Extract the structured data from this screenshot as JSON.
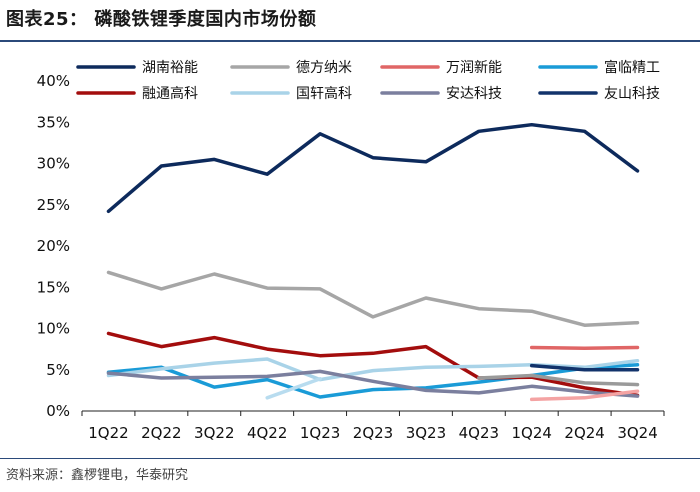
{
  "figure": {
    "title": "图表25：   磷酸铁锂季度国内市场份额",
    "source": "资料来源：鑫椤锂电，华泰研究"
  },
  "chart_data": {
    "type": "line",
    "title": "磷酸铁锂季度国内市场份额",
    "xlabel": "",
    "ylabel": "",
    "categories": [
      "1Q22",
      "2Q22",
      "3Q22",
      "4Q22",
      "1Q23",
      "2Q23",
      "3Q23",
      "4Q23",
      "1Q24",
      "2Q24",
      "3Q24"
    ],
    "yticks": [
      "0%",
      "5%",
      "10%",
      "15%",
      "20%",
      "25%",
      "30%",
      "35%",
      "40%"
    ],
    "ylim": [
      0,
      40
    ],
    "legend_position": "top",
    "series": [
      {
        "name": "湖南裕能",
        "color": "#0d2a5c",
        "values": [
          24.2,
          29.7,
          30.5,
          28.7,
          33.6,
          30.7,
          30.2,
          33.9,
          34.7,
          33.9,
          29.1
        ]
      },
      {
        "name": "德方纳米",
        "color": "#a6a6a6",
        "values": [
          16.8,
          14.8,
          16.6,
          14.9,
          14.8,
          11.4,
          13.7,
          12.4,
          12.1,
          10.4,
          10.7
        ]
      },
      {
        "name": "万润新能",
        "color": "#e06666",
        "values": [
          null,
          null,
          null,
          null,
          null,
          null,
          null,
          null,
          7.7,
          7.6,
          7.7
        ]
      },
      {
        "name": "富临精工",
        "color": "#1a9bd7",
        "values": [
          4.7,
          5.3,
          2.9,
          3.8,
          1.7,
          2.6,
          2.8,
          3.5,
          4.3,
          5.2,
          5.6
        ]
      },
      {
        "name": "融通高科",
        "color": "#a30d0d",
        "values": [
          9.4,
          7.8,
          8.9,
          7.5,
          6.7,
          7.0,
          7.8,
          4.0,
          4.1,
          2.8,
          1.9
        ]
      },
      {
        "name": "国轩高科",
        "color": "#a9d3e8",
        "values": [
          4.3,
          5.1,
          5.8,
          6.3,
          3.8,
          4.9,
          5.3,
          5.4,
          5.6,
          5.3,
          6.1
        ]
      },
      {
        "name": "安达科技",
        "color": "#7b7f9e",
        "values": [
          4.6,
          4.0,
          4.1,
          4.2,
          4.8,
          3.6,
          2.5,
          2.2,
          3.0,
          2.3,
          1.8
        ]
      },
      {
        "name": "友山科技",
        "color": "#12336b",
        "values": [
          null,
          null,
          null,
          null,
          null,
          null,
          null,
          null,
          5.5,
          5.0,
          5.0
        ]
      },
      {
        "name": "",
        "color": "#f4a3a3",
        "values": [
          null,
          null,
          null,
          null,
          null,
          null,
          null,
          null,
          1.4,
          1.6,
          2.4
        ]
      },
      {
        "name": "",
        "color": "#b8dcef",
        "values": [
          null,
          null,
          null,
          1.6,
          3.9,
          null,
          null,
          null,
          null,
          null,
          null
        ]
      },
      {
        "name": "",
        "color": "#9a9a9a",
        "values": [
          null,
          null,
          null,
          null,
          null,
          null,
          null,
          4.0,
          4.3,
          3.4,
          3.2
        ]
      }
    ]
  }
}
